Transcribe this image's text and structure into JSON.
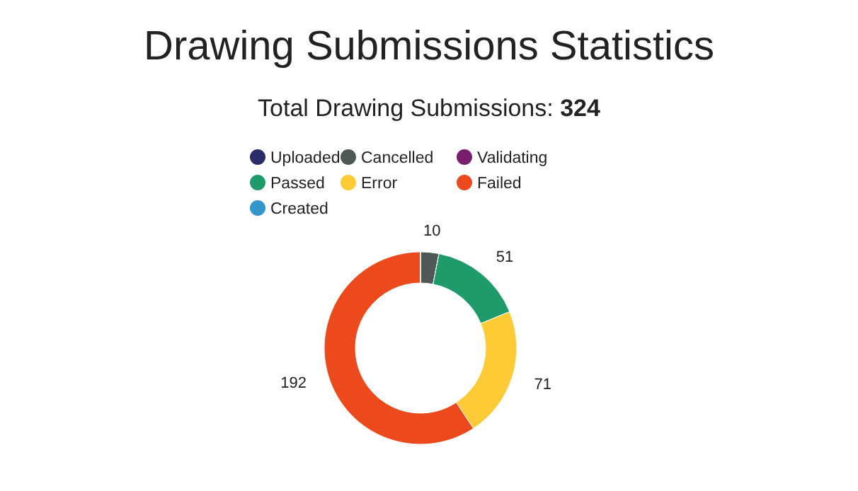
{
  "chart_data": {
    "type": "donut",
    "title": "Drawing Submissions Statistics",
    "subtitle": "Total Drawing Submissions: 324",
    "categories": [
      "Uploaded",
      "Cancelled",
      "Validating",
      "Passed",
      "Error",
      "Failed",
      "Created"
    ],
    "values": [
      0,
      10,
      0,
      51,
      71,
      192,
      0
    ],
    "colors": [
      "#2b2d6b",
      "#4e5855",
      "#7a1f6e",
      "#1f9a6b",
      "#fecb36",
      "#ec4a1c",
      "#3397cb"
    ],
    "data_labels": true,
    "legend": "top"
  }
}
